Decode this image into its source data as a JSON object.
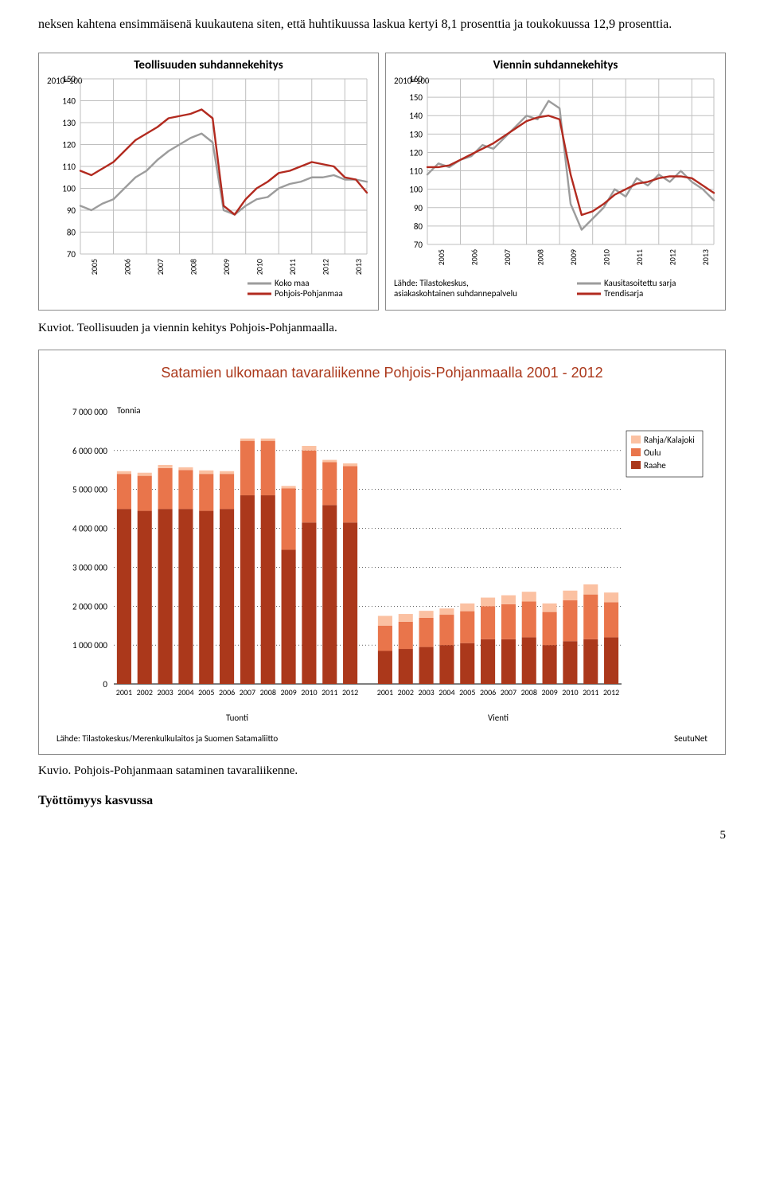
{
  "paragraph": "neksen kahtena ensimmäisenä kuukautena siten, että huhtikuussa laskua kertyi 8,1 prosenttia ja toukokuussa 12,9 prosenttia.",
  "caption1": "Kuviot. Teollisuuden ja viennin kehitys Pohjois-Pohjanmaalla.",
  "caption2": "Kuvio. Pohjois-Pohjanmaan sataminen tavaraliikenne.",
  "subhead": "Työttömyys kasvussa",
  "page_number": "5",
  "chart_left": {
    "title": "Teollisuuden suhdannekehitys",
    "index_label": "2010=100",
    "ylim": [
      70,
      150
    ],
    "ytick_step": 10,
    "years": [
      "2005",
      "2006",
      "2007",
      "2008",
      "2009",
      "2010",
      "2011",
      "2012",
      "2013"
    ],
    "series": {
      "koko_maa": {
        "color": "#9c9c9c",
        "values": [
          92,
          90,
          93,
          95,
          100,
          105,
          108,
          113,
          117,
          120,
          123,
          125,
          121,
          90,
          88,
          92,
          95,
          96,
          100,
          102,
          103,
          105,
          105,
          106,
          104,
          104,
          103
        ]
      },
      "pohjois_pohjanmaa": {
        "color": "#b22a1f",
        "values": [
          108,
          106,
          109,
          112,
          117,
          122,
          125,
          128,
          132,
          133,
          134,
          136,
          132,
          92,
          88,
          95,
          100,
          103,
          107,
          108,
          110,
          112,
          111,
          110,
          105,
          104,
          98
        ]
      }
    },
    "legend": [
      "Koko maa",
      "Pohjois-Pohjanmaa"
    ],
    "grid_color": "#bfbfbf",
    "line_width": 2.4,
    "bg": "#ffffff"
  },
  "chart_right": {
    "title": "Viennin suhdannekehitys",
    "index_label": "2010=100",
    "ylim": [
      70,
      160
    ],
    "ytick_step": 10,
    "years": [
      "2005",
      "2006",
      "2007",
      "2008",
      "2009",
      "2010",
      "2011",
      "2012",
      "2013"
    ],
    "series": {
      "kausi": {
        "color": "#9c9c9c",
        "values": [
          108,
          114,
          112,
          116,
          118,
          124,
          122,
          128,
          134,
          140,
          138,
          148,
          144,
          92,
          78,
          84,
          90,
          100,
          96,
          106,
          102,
          108,
          104,
          110,
          104,
          100,
          94
        ]
      },
      "trendi": {
        "color": "#b22a1f",
        "values": [
          112,
          112,
          113,
          116,
          119,
          122,
          125,
          129,
          133,
          137,
          139,
          140,
          138,
          108,
          86,
          88,
          92,
          97,
          100,
          103,
          104,
          106,
          107,
          107,
          106,
          102,
          98
        ]
      }
    },
    "legend": [
      "Kausitasoitettu sarja",
      "Trendisarja"
    ],
    "source1": "Lähde: Tilastokeskus,",
    "source2": "asiakaskohtainen suhdannepalvelu",
    "grid_color": "#bfbfbf",
    "line_width": 2.4,
    "bg": "#ffffff"
  },
  "bar_chart": {
    "title": "Satamien ulkomaan tavaraliikenne Pohjois-Pohjanmaalla  2001 - 2012",
    "y_axis_label": "Tonnia",
    "ylim": [
      0,
      7000000
    ],
    "ytick_step": 1000000,
    "years": [
      "2001",
      "2002",
      "2003",
      "2004",
      "2005",
      "2006",
      "2007",
      "2008",
      "2009",
      "2010",
      "2011",
      "2012"
    ],
    "groups": [
      "Tuonti",
      "Vienti"
    ],
    "legend": [
      {
        "label": "Rahja/Kalajoki",
        "color": "#fbc1a2"
      },
      {
        "label": "Oulu",
        "color": "#e9754b"
      },
      {
        "label": "Raahe",
        "color": "#ab381b"
      }
    ],
    "data": {
      "Tuonti": {
        "Raahe": [
          4500000,
          4450000,
          4500000,
          4500000,
          4450000,
          4500000,
          4850000,
          4850000,
          3450000,
          4150000,
          4600000,
          4150000
        ],
        "Oulu": [
          900000,
          900000,
          1050000,
          1000000,
          950000,
          900000,
          1400000,
          1400000,
          1580000,
          1850000,
          1100000,
          1450000
        ],
        "Rahja/Kalajoki": [
          70000,
          80000,
          80000,
          70000,
          90000,
          70000,
          60000,
          60000,
          60000,
          120000,
          60000,
          70000
        ]
      },
      "Vienti": {
        "Raahe": [
          850000,
          900000,
          950000,
          1000000,
          1050000,
          1150000,
          1150000,
          1200000,
          1000000,
          1100000,
          1150000,
          1200000
        ],
        "Oulu": [
          650000,
          700000,
          750000,
          780000,
          820000,
          850000,
          900000,
          920000,
          850000,
          1050000,
          1150000,
          900000
        ],
        "Rahja/Kalajoki": [
          250000,
          200000,
          180000,
          160000,
          200000,
          220000,
          230000,
          250000,
          220000,
          250000,
          260000,
          250000
        ]
      }
    },
    "source": "Lähde: Tilastokeskus/Merenkulkulaitos ja Suomen Satamaliitto",
    "brand": "SeutuNet",
    "grid_color": "#000000",
    "bar_width": 0.7,
    "bg": "#ffffff",
    "label_fontsize": 11
  }
}
